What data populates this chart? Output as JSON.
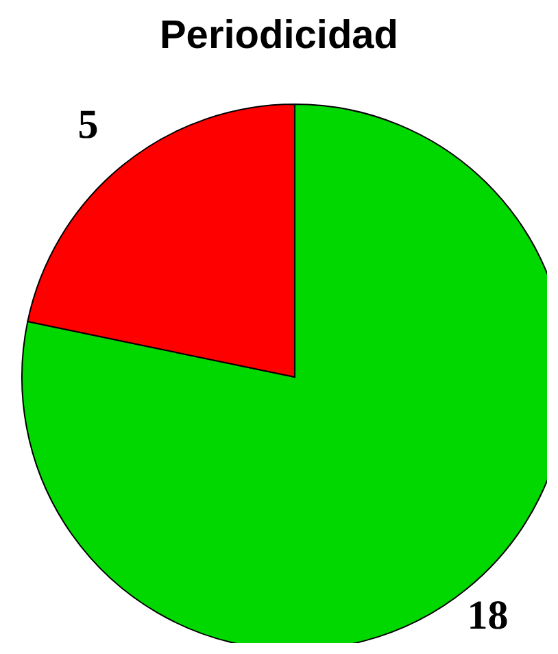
{
  "chart_data": {
    "type": "pie",
    "title": "Periodicidad",
    "categories": [
      null,
      null
    ],
    "values": [
      18,
      5
    ],
    "colors": [
      "#00d800",
      "#ff0000"
    ],
    "data_labels": true,
    "legend": false
  }
}
